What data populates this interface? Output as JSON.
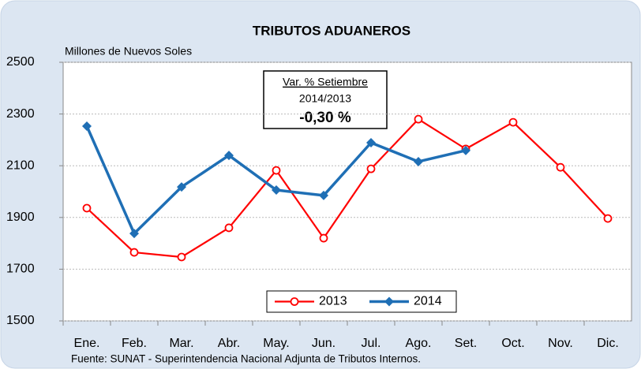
{
  "chart_data": {
    "type": "line",
    "title": "TRIBUTOS ADUANEROS",
    "y_label": "Millones de Nuevos Soles",
    "annotation": [
      "Var. % Setiembre",
      "2014/2013",
      "-0,30 %"
    ],
    "source": "Fuente: SUNAT - Superintendencia  Nacional Adjunta de Tributos  Internos.",
    "categories": [
      "Ene.",
      "Feb.",
      "Mar.",
      "Abr.",
      "May.",
      "Jun.",
      "Jul.",
      "Ago.",
      "Set.",
      "Oct.",
      "Nov.",
      "Dic."
    ],
    "series": [
      {
        "name": "2013",
        "color": "#ff0000",
        "marker": "circle",
        "values": [
          1936,
          1765,
          1747,
          1860,
          2082,
          1820,
          2088,
          2280,
          2165,
          2268,
          2094,
          1896
        ]
      },
      {
        "name": "2014",
        "color": "#1f6fb5",
        "marker": "diamond",
        "values": [
          2253,
          1838,
          2018,
          2140,
          2006,
          1985,
          2189,
          2116,
          2159,
          null,
          null,
          null
        ]
      }
    ],
    "ylim": [
      1500,
      2500
    ],
    "yticks": [
      1500,
      1700,
      1900,
      2100,
      2300,
      2500
    ],
    "grid": true,
    "legend": "lower center"
  }
}
